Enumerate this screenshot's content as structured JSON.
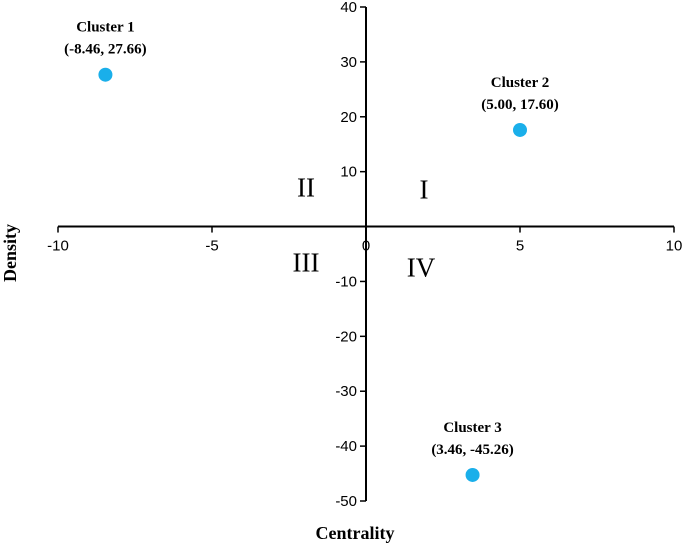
{
  "chart_data": {
    "type": "scatter",
    "xlabel": "Centrality",
    "ylabel": "Density",
    "xlim": [
      -10,
      10
    ],
    "ylim": [
      -50,
      40
    ],
    "xticks": [
      -10,
      -5,
      0,
      5,
      10
    ],
    "yticks": [
      -50,
      -40,
      -30,
      -20,
      -10,
      0,
      10,
      20,
      30,
      40
    ],
    "grid": false,
    "legend": "none",
    "marker_color": "#1AAFEA",
    "points": [
      {
        "name": "Cluster 1",
        "coord_label": "(-8.46, 27.66)",
        "x": -8.46,
        "y": 27.66
      },
      {
        "name": "Cluster 2",
        "coord_label": "(5.00, 17.60)",
        "x": 5.0,
        "y": 17.6
      },
      {
        "name": "Cluster 3",
        "coord_label": "(3.46, -45.26)",
        "x": 3.46,
        "y": -45.26
      }
    ],
    "quadrants": [
      {
        "label": "I",
        "position": "upper-right"
      },
      {
        "label": "II",
        "position": "upper-left"
      },
      {
        "label": "III",
        "position": "lower-left"
      },
      {
        "label": "IV",
        "position": "lower-right"
      }
    ]
  }
}
